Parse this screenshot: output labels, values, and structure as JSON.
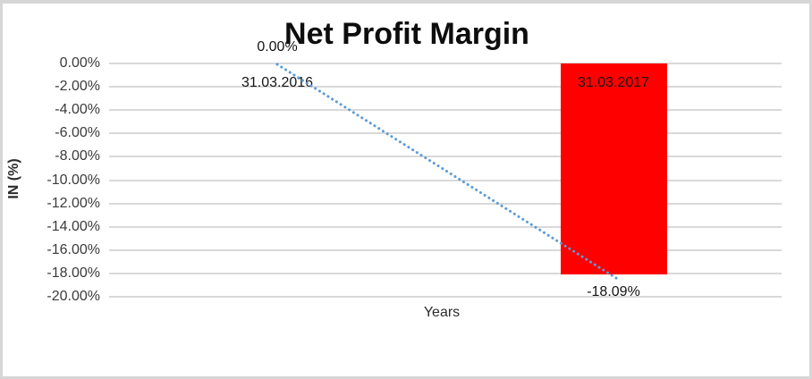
{
  "frame": {
    "background": "#ffffff",
    "border_color": "#d6d6d6"
  },
  "chart_data": {
    "type": "bar",
    "title": "Net Profit Margin",
    "xlabel": "Years",
    "ylabel": "IN (%)",
    "categories": [
      "31.03.2016",
      "31.03.2017"
    ],
    "series": [
      {
        "name": "Net Profit Margin",
        "type": "bar",
        "values": [
          0.0,
          -18.09
        ],
        "color": "#ff0000"
      },
      {
        "name": "trendline",
        "type": "line",
        "line_style": "dotted",
        "values": [
          0.0,
          -18.09
        ],
        "color": "#5b9bd5"
      }
    ],
    "value_labels": [
      "0.00%",
      "-18.09%"
    ],
    "ylim": [
      0,
      -20
    ],
    "ytick_values": [
      0,
      -2,
      -4,
      -6,
      -8,
      -10,
      -12,
      -14,
      -16,
      -18,
      -20
    ],
    "ytick_labels": [
      "0.00%",
      "-2.00%",
      "-4.00%",
      "-6.00%",
      "-8.00%",
      "-10.00%",
      "-12.00%",
      "-14.00%",
      "-16.00%",
      "-18.00%",
      "-20.00%"
    ],
    "grid": true,
    "gridline_color": "#d9d9d9",
    "legend": "none",
    "bar_label_color": "#141414",
    "title_color": "#0d0d0d"
  }
}
